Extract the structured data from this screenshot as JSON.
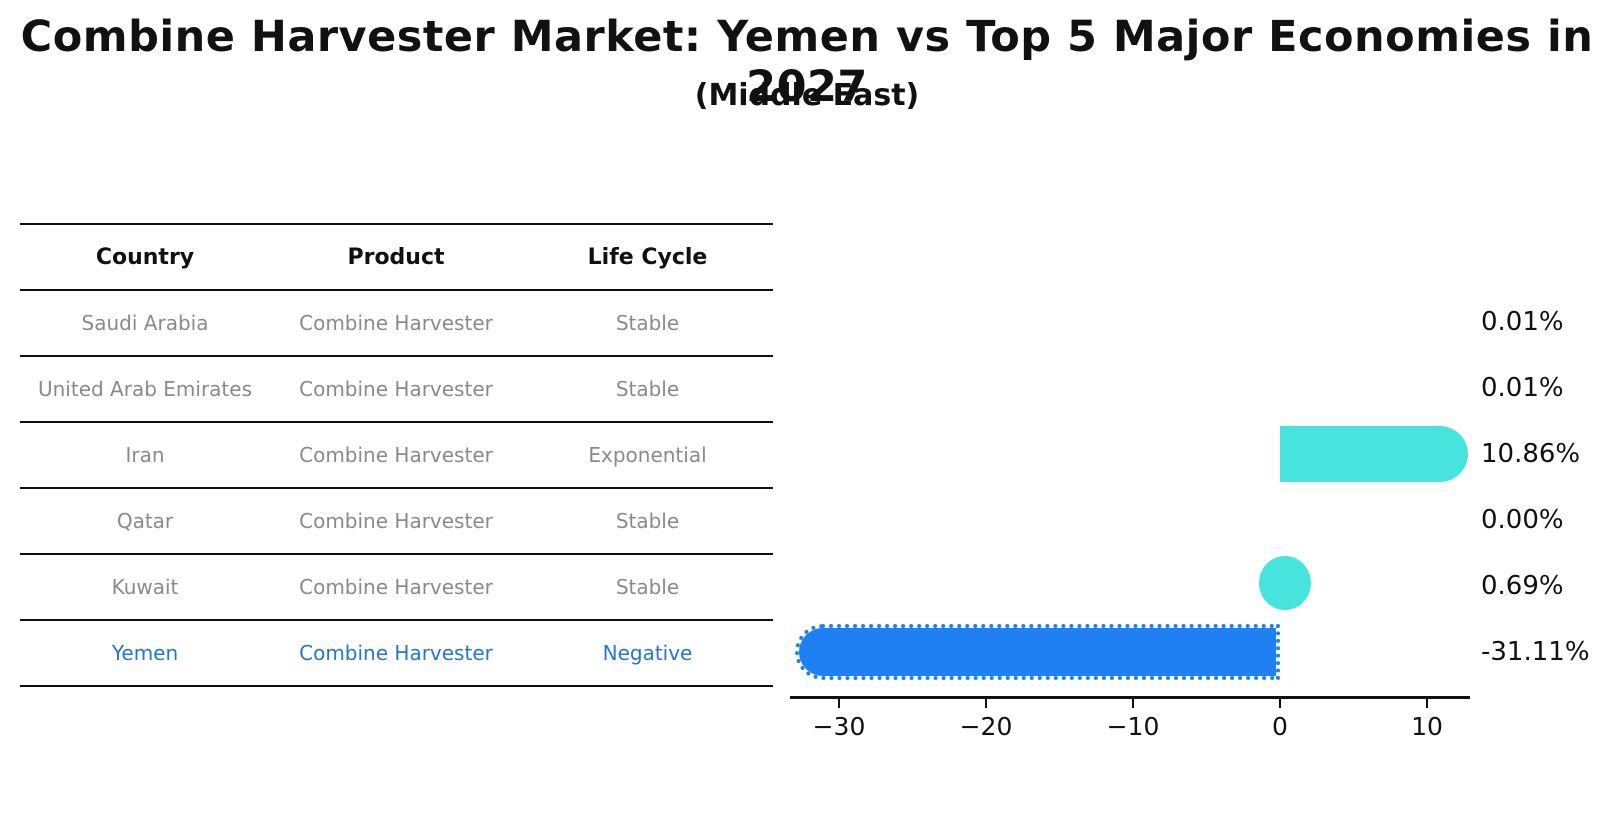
{
  "header": {
    "title": "Combine Harvester Market: Yemen vs Top 5 Major Economies in 2027",
    "subtitle": "(Middle East)"
  },
  "table": {
    "headers": [
      "Country",
      "Product",
      "Life Cycle"
    ],
    "rows": [
      {
        "country": "Saudi Arabia",
        "product": "Combine Harvester",
        "life_cycle": "Stable",
        "highlight": false
      },
      {
        "country": "United Arab Emirates",
        "product": "Combine Harvester",
        "life_cycle": "Stable",
        "highlight": false
      },
      {
        "country": "Iran",
        "product": "Combine Harvester",
        "life_cycle": "Exponential",
        "highlight": false
      },
      {
        "country": "Qatar",
        "product": "Combine Harvester",
        "life_cycle": "Stable",
        "highlight": false
      },
      {
        "country": "Kuwait",
        "product": "Combine Harvester",
        "life_cycle": "Stable",
        "highlight": false
      },
      {
        "country": "Yemen",
        "product": "Combine Harvester",
        "life_cycle": "Negative",
        "highlight": true
      }
    ]
  },
  "chart_data": {
    "type": "bar",
    "orientation": "horizontal",
    "title": "Combine Harvester Market: Yemen vs Top 5 Major Economies in 2027",
    "subtitle": "(Middle East)",
    "categories": [
      "Saudi Arabia",
      "United Arab Emirates",
      "Iran",
      "Qatar",
      "Kuwait",
      "Yemen"
    ],
    "values": [
      0.01,
      0.01,
      10.86,
      0.0,
      0.69,
      -31.11
    ],
    "value_labels": [
      "0.01%",
      "0.01%",
      "10.86%",
      "0.00%",
      "0.69%",
      "-31.11%"
    ],
    "xlabel": "",
    "ylabel": "",
    "xlim": [
      -33.3,
      12.9
    ],
    "xticks": [
      {
        "value": -30,
        "label": "−30"
      },
      {
        "value": -20,
        "label": "−20"
      },
      {
        "value": -10,
        "label": "−10"
      },
      {
        "value": 0,
        "label": "0"
      },
      {
        "value": 10,
        "label": "10"
      }
    ],
    "grid": false,
    "legend": false,
    "colors": {
      "positive_bar": "#47e4dd",
      "negative_bar": "#1e80f2",
      "highlight_text": "#2577c9",
      "cell_text": "#8a8a8a",
      "header_text": "#111111"
    }
  }
}
